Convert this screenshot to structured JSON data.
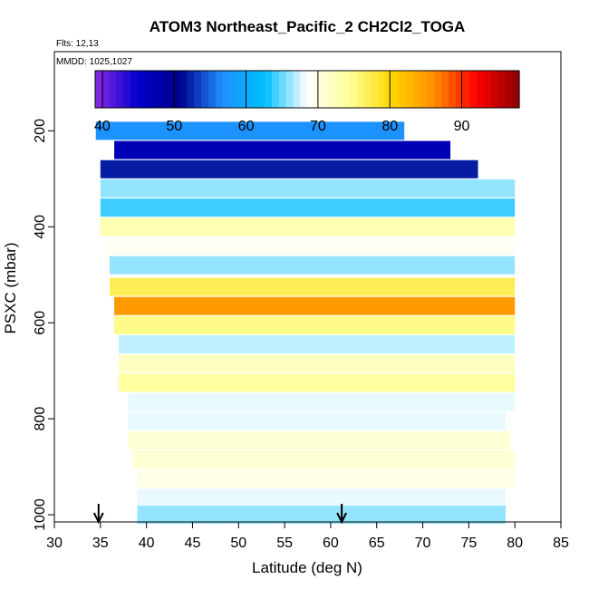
{
  "chart_data": {
    "type": "heatmap",
    "title": "ATOM3 Northeast_Pacific_2 CH2Cl2_TOGA",
    "annotations": [
      "Flts: 12,13",
      "MMDD: 1025,1027"
    ],
    "xlabel": "Latitude (deg N)",
    "ylabel": "PSXC (mbar)",
    "xlim": [
      30,
      85
    ],
    "ylim": [
      1015,
      35
    ],
    "y_reversed": true,
    "xticks": [
      30,
      35,
      40,
      45,
      50,
      55,
      60,
      65,
      70,
      75,
      80,
      85
    ],
    "yticks": [
      200,
      400,
      600,
      800,
      1000
    ],
    "grid": false,
    "colorbar": {
      "placement": "top-inset",
      "range": [
        39,
        98
      ],
      "ticks": [
        40,
        50,
        60,
        70,
        80,
        90
      ],
      "colors": [
        "#8a2be2",
        "#0000cd",
        "#00008b",
        "#1e90ff",
        "#00bfff",
        "#ffffff",
        "#ffff99",
        "#ffd700",
        "#ff8c00",
        "#ff0000",
        "#8b0000"
      ]
    },
    "flight_markers": {
      "symbol": "down-arrow",
      "latitudes": [
        34.8,
        61.2
      ]
    },
    "layers": [
      {
        "p": 200,
        "lat": [
          34.5,
          68
        ],
        "value": 57
      },
      {
        "p": 240,
        "lat": [
          36.5,
          73
        ],
        "value": 47
      },
      {
        "p": 280,
        "lat": [
          35,
          76
        ],
        "value": 52
      },
      {
        "p": 320,
        "lat": [
          35,
          80
        ],
        "value": 66
      },
      {
        "p": 360,
        "lat": [
          35,
          80
        ],
        "value": 64
      },
      {
        "p": 400,
        "lat": [
          35,
          80
        ],
        "value": 73
      },
      {
        "p": 440,
        "lat": [
          35.5,
          80
        ],
        "value": 69
      },
      {
        "p": 480,
        "lat": [
          36,
          80
        ],
        "value": 66
      },
      {
        "p": 525,
        "lat": [
          36,
          80
        ],
        "value": 77
      },
      {
        "p": 565,
        "lat": [
          36.5,
          80
        ],
        "value": 85
      },
      {
        "p": 605,
        "lat": [
          36.5,
          80
        ],
        "value": 75
      },
      {
        "p": 645,
        "lat": [
          37,
          80
        ],
        "value": 67
      },
      {
        "p": 685,
        "lat": [
          37,
          80
        ],
        "value": 72
      },
      {
        "p": 725,
        "lat": [
          37,
          80
        ],
        "value": 74
      },
      {
        "p": 765,
        "lat": [
          38,
          80
        ],
        "value": 68
      },
      {
        "p": 805,
        "lat": [
          38,
          79
        ],
        "value": 68
      },
      {
        "p": 845,
        "lat": [
          38,
          79.5
        ],
        "value": 71
      },
      {
        "p": 885,
        "lat": [
          38.5,
          80
        ],
        "value": 71
      },
      {
        "p": 925,
        "lat": [
          39,
          80
        ],
        "value": 70
      },
      {
        "p": 965,
        "lat": [
          39,
          79
        ],
        "value": 68
      },
      {
        "p": 1000,
        "lat": [
          39,
          79
        ],
        "value": 66
      }
    ]
  }
}
